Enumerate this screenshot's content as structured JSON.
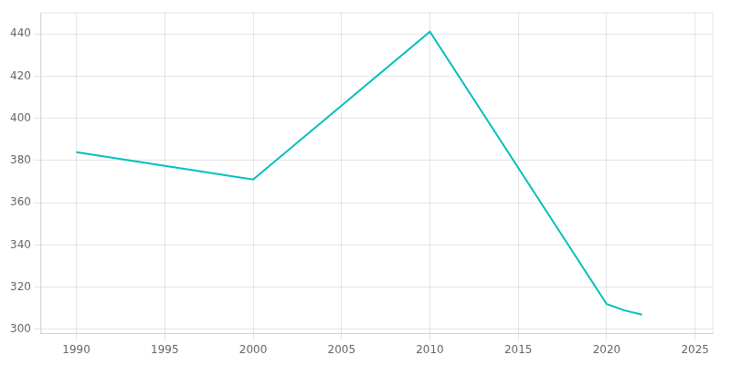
{
  "chart_data": {
    "type": "line",
    "x": [
      1990,
      2000,
      2010,
      2020,
      2021,
      2022
    ],
    "values": [
      384,
      371,
      441,
      312,
      309,
      307
    ],
    "color": "#00BEBE",
    "xlim": [
      1988,
      2026
    ],
    "ylim": [
      298,
      450
    ],
    "xticks": [
      1990,
      1995,
      2000,
      2005,
      2010,
      2015,
      2020,
      2025
    ],
    "yticks": [
      300,
      320,
      340,
      360,
      380,
      400,
      420,
      440
    ],
    "grid": true
  }
}
